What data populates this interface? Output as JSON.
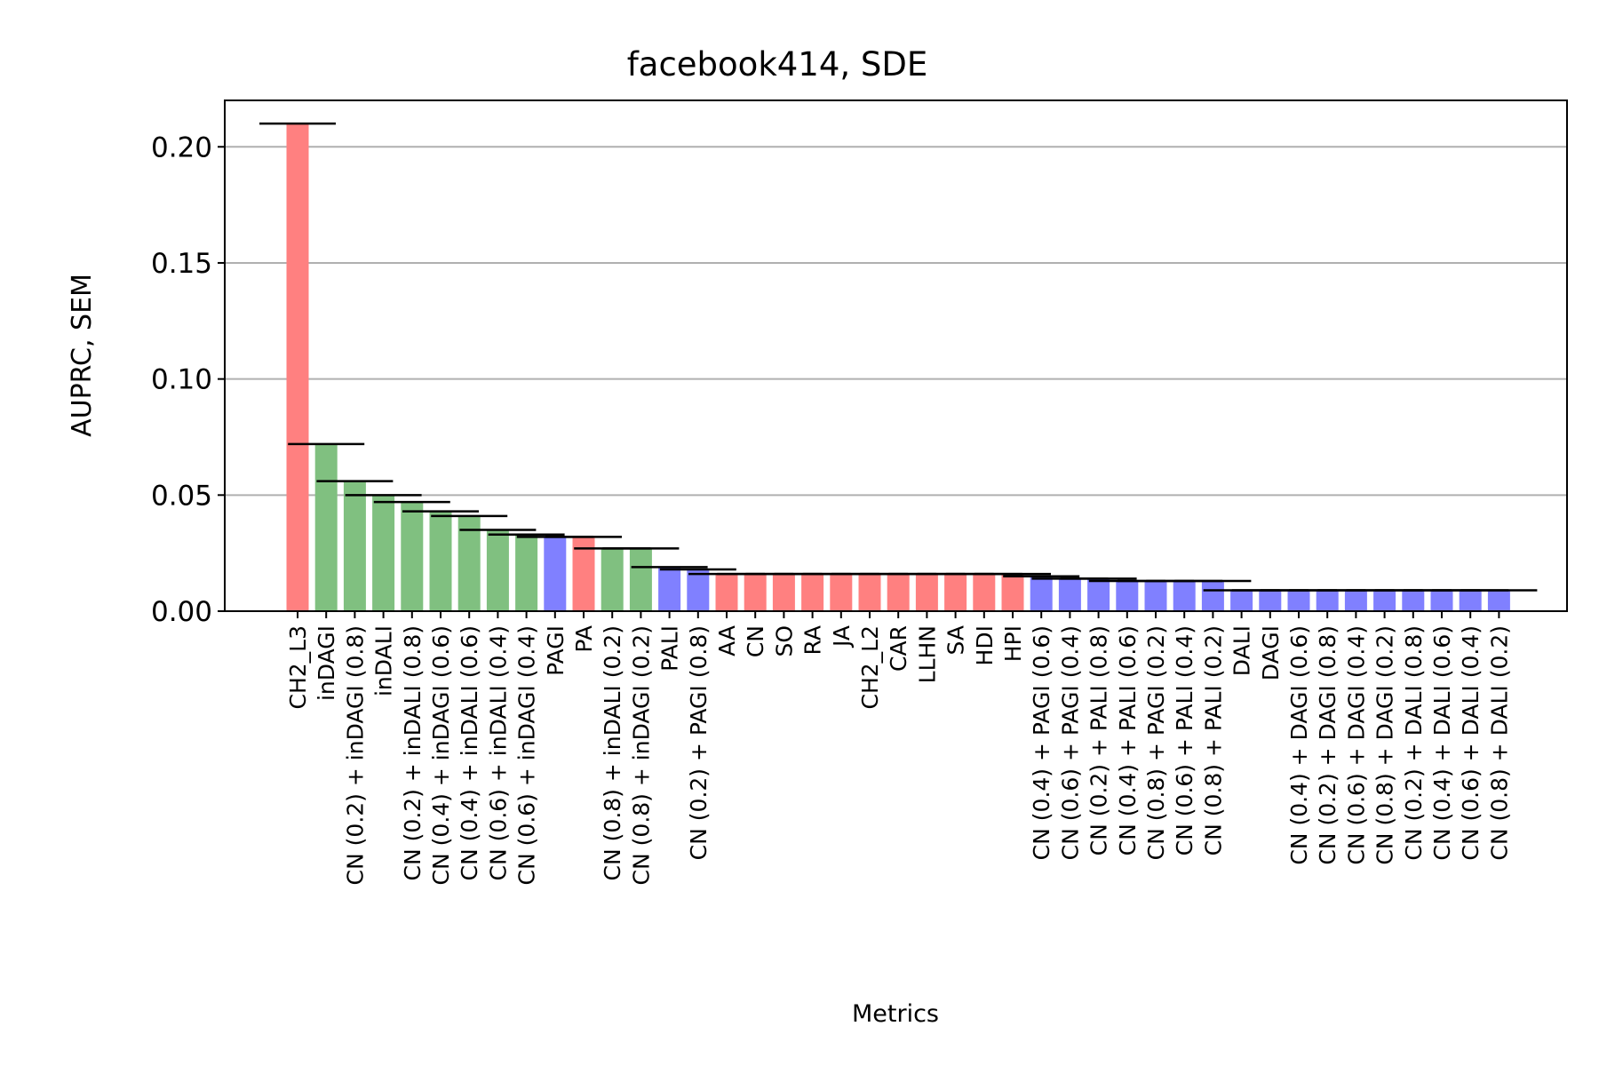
{
  "chart_data": {
    "type": "bar",
    "title": "facebook414, SDE",
    "xlabel": "Metrics",
    "ylabel": "AUPRC, SEM",
    "ylim": [
      0,
      0.22
    ],
    "yticks": [
      "0.00",
      "0.05",
      "0.10",
      "0.15",
      "0.20"
    ],
    "ytick_values": [
      0,
      0.05,
      0.1,
      0.15,
      0.2
    ],
    "grid": "y",
    "colors": {
      "red": "#ff8080",
      "green": "#80c080",
      "blue": "#8080ff"
    },
    "categories": [
      "CH2_L3",
      "inDAGI",
      "CN (0.2) + inDAGI (0.8)",
      "inDALI",
      "CN (0.2) + inDALI (0.8)",
      "CN (0.4) + inDAGI (0.6)",
      "CN (0.4) + inDALI (0.6)",
      "CN (0.6) + inDALI (0.4)",
      "CN (0.6) + inDAGI (0.4)",
      "PAGI",
      "PA",
      "CN (0.8) + inDALI (0.2)",
      "CN (0.8) + inDAGI (0.2)",
      "PALI",
      "CN (0.2) + PAGI (0.8)",
      "AA",
      "CN",
      "SO",
      "RA",
      "JA",
      "CH2_L2",
      "CAR",
      "LLHN",
      "SA",
      "HDI",
      "HPI",
      "CN (0.4) + PAGI (0.6)",
      "CN (0.6) + PAGI (0.4)",
      "CN (0.2) + PALI (0.8)",
      "CN (0.4) + PALI (0.6)",
      "CN (0.8) + PAGI (0.2)",
      "CN (0.6) + PALI (0.4)",
      "CN (0.8) + PALI (0.2)",
      "DALI",
      "DAGI",
      "CN (0.4) + DAGI (0.6)",
      "CN (0.2) + DAGI (0.8)",
      "CN (0.6) + DAGI (0.4)",
      "CN (0.8) + DAGI (0.2)",
      "CN (0.2) + DALI (0.8)",
      "CN (0.4) + DALI (0.6)",
      "CN (0.6) + DALI (0.4)",
      "CN (0.8) + DALI (0.2)"
    ],
    "values": [
      0.21,
      0.072,
      0.056,
      0.05,
      0.047,
      0.043,
      0.041,
      0.035,
      0.033,
      0.032,
      0.032,
      0.027,
      0.027,
      0.019,
      0.018,
      0.016,
      0.016,
      0.016,
      0.016,
      0.016,
      0.016,
      0.016,
      0.016,
      0.016,
      0.016,
      0.016,
      0.015,
      0.014,
      0.014,
      0.013,
      0.013,
      0.013,
      0.013,
      0.009,
      0.009,
      0.009,
      0.009,
      0.009,
      0.009,
      0.009,
      0.009,
      0.009,
      0.009
    ],
    "bar_colors": [
      "red",
      "green",
      "green",
      "green",
      "green",
      "green",
      "green",
      "green",
      "green",
      "blue",
      "red",
      "green",
      "green",
      "blue",
      "blue",
      "red",
      "red",
      "red",
      "red",
      "red",
      "red",
      "red",
      "red",
      "red",
      "red",
      "red",
      "blue",
      "blue",
      "blue",
      "blue",
      "blue",
      "blue",
      "blue",
      "blue",
      "blue",
      "blue",
      "blue",
      "blue",
      "blue",
      "blue",
      "blue",
      "blue",
      "blue"
    ]
  }
}
